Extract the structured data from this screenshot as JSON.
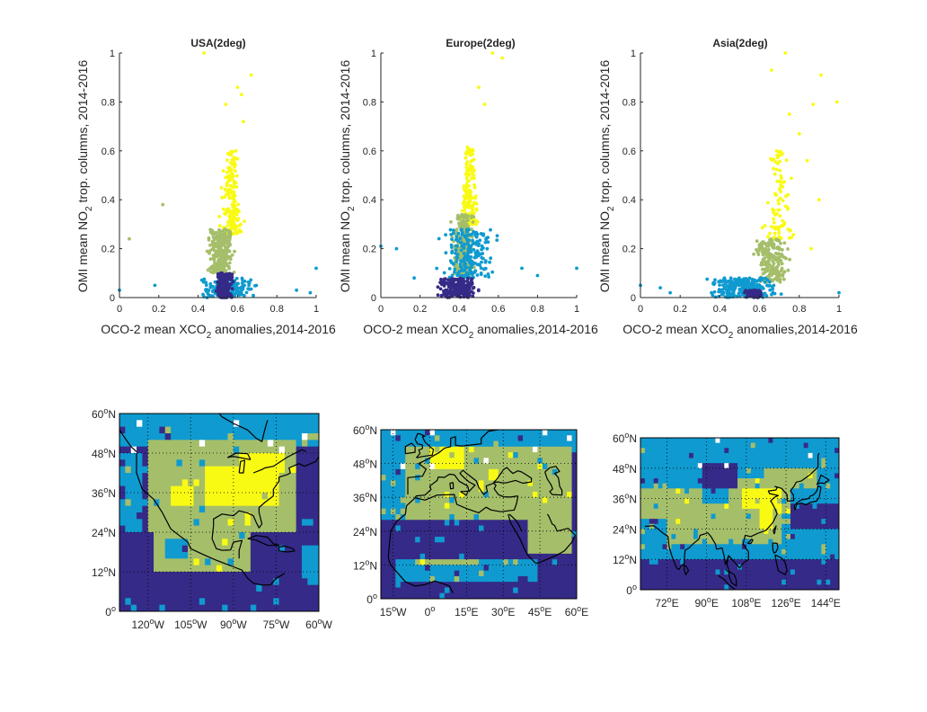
{
  "colors": {
    "class1": "#352a87",
    "class2": "#0f9ad0",
    "class3": "#a5be6a",
    "class4": "#f9fa14",
    "missing": "#ffffff",
    "coast": "#000000"
  },
  "scatter_common": {
    "xlabel_parts": [
      "OCO-2 mean XCO",
      "2",
      " anomalies,2014-2016"
    ],
    "ylabel_parts": [
      "OMI mean NO",
      "2",
      " trop. columns, 2014-2016"
    ],
    "ticks": [
      "0",
      "0.2",
      "0.4",
      "0.6",
      "0.8",
      "1"
    ]
  },
  "chart_data": [
    {
      "type": "scatter",
      "title": "USA(2deg)",
      "xlim": [
        0,
        1
      ],
      "ylim": [
        0,
        1
      ],
      "grid": false,
      "point_clusters": [
        {
          "class": 4,
          "n": 190,
          "x_center": 0.57,
          "x_spread": 0.07,
          "y_range": [
            0.26,
            0.6
          ]
        },
        {
          "class": 3,
          "n": 260,
          "x_center": 0.52,
          "x_spread": 0.08,
          "y_range": [
            0.1,
            0.28
          ]
        },
        {
          "class": 2,
          "n": 160,
          "x_center": 0.55,
          "x_spread": 0.17,
          "y_range": [
            0.0,
            0.08
          ]
        },
        {
          "class": 1,
          "n": 200,
          "x_center": 0.53,
          "x_spread": 0.05,
          "y_range": [
            0.0,
            0.1
          ]
        }
      ],
      "outliers": [
        {
          "class": 4,
          "x": 0.43,
          "y": 1.0
        },
        {
          "class": 4,
          "x": 0.67,
          "y": 0.91
        },
        {
          "class": 4,
          "x": 0.6,
          "y": 0.86
        },
        {
          "class": 4,
          "x": 0.62,
          "y": 0.83
        },
        {
          "class": 4,
          "x": 0.54,
          "y": 0.79
        },
        {
          "class": 4,
          "x": 0.63,
          "y": 0.72
        },
        {
          "class": 3,
          "x": 0.22,
          "y": 0.38
        },
        {
          "class": 3,
          "x": 0.05,
          "y": 0.24
        },
        {
          "class": 2,
          "x": 0.0,
          "y": 0.03
        },
        {
          "class": 2,
          "x": 0.18,
          "y": 0.05
        },
        {
          "class": 2,
          "x": 1.0,
          "y": 0.12
        },
        {
          "class": 2,
          "x": 0.97,
          "y": 0.02
        },
        {
          "class": 2,
          "x": 0.9,
          "y": 0.03
        }
      ]
    },
    {
      "type": "scatter",
      "title": "Europe(2deg)",
      "xlim": [
        0,
        1
      ],
      "ylim": [
        0,
        1
      ],
      "grid": false,
      "point_clusters": [
        {
          "class": 4,
          "n": 170,
          "x_center": 0.45,
          "x_spread": 0.06,
          "y_range": [
            0.3,
            0.62
          ]
        },
        {
          "class": 3,
          "n": 280,
          "x_center": 0.42,
          "x_spread": 0.06,
          "y_range": [
            0.09,
            0.34
          ]
        },
        {
          "class": 2,
          "n": 200,
          "x_center": 0.45,
          "x_spread": 0.16,
          "y_range": [
            0.08,
            0.28
          ]
        },
        {
          "class": 1,
          "n": 230,
          "x_center": 0.4,
          "x_spread": 0.12,
          "y_range": [
            0.0,
            0.08
          ]
        }
      ],
      "outliers": [
        {
          "class": 4,
          "x": 0.57,
          "y": 1.0
        },
        {
          "class": 4,
          "x": 0.62,
          "y": 0.98
        },
        {
          "class": 4,
          "x": 0.5,
          "y": 0.86
        },
        {
          "class": 4,
          "x": 0.53,
          "y": 0.79
        },
        {
          "class": 2,
          "x": 0.0,
          "y": 0.21
        },
        {
          "class": 2,
          "x": 0.08,
          "y": 0.2
        },
        {
          "class": 2,
          "x": 1.0,
          "y": 0.12
        },
        {
          "class": 2,
          "x": 0.72,
          "y": 0.12
        },
        {
          "class": 2,
          "x": 0.17,
          "y": 0.08
        },
        {
          "class": 2,
          "x": 0.8,
          "y": 0.09
        }
      ]
    },
    {
      "type": "scatter",
      "title": "Asia(2deg)",
      "xlim": [
        0,
        1
      ],
      "ylim": [
        0,
        1
      ],
      "grid": false,
      "point_clusters": [
        {
          "class": 4,
          "n": 90,
          "x_center": 0.7,
          "x_spread": 0.1,
          "y_range": [
            0.24,
            0.6
          ]
        },
        {
          "class": 3,
          "n": 200,
          "x_center": 0.66,
          "x_spread": 0.1,
          "y_range": [
            0.06,
            0.24
          ]
        },
        {
          "class": 2,
          "n": 260,
          "x_center": 0.52,
          "x_spread": 0.2,
          "y_range": [
            0.0,
            0.08
          ]
        },
        {
          "class": 1,
          "n": 70,
          "x_center": 0.57,
          "x_spread": 0.05,
          "y_range": [
            0.0,
            0.03
          ]
        }
      ],
      "outliers": [
        {
          "class": 4,
          "x": 0.73,
          "y": 1.0
        },
        {
          "class": 4,
          "x": 0.91,
          "y": 0.91
        },
        {
          "class": 4,
          "x": 0.66,
          "y": 0.93
        },
        {
          "class": 4,
          "x": 0.87,
          "y": 0.79
        },
        {
          "class": 4,
          "x": 0.99,
          "y": 0.8
        },
        {
          "class": 4,
          "x": 0.75,
          "y": 0.75
        },
        {
          "class": 4,
          "x": 0.8,
          "y": 0.67
        },
        {
          "class": 4,
          "x": 0.84,
          "y": 0.56
        },
        {
          "class": 4,
          "x": 0.9,
          "y": 0.4
        },
        {
          "class": 4,
          "x": 0.86,
          "y": 0.2
        },
        {
          "class": 2,
          "x": 0.0,
          "y": 0.05
        },
        {
          "class": 2,
          "x": 1.0,
          "y": 0.02
        },
        {
          "class": 2,
          "x": 0.1,
          "y": 0.04
        },
        {
          "class": 2,
          "x": 0.15,
          "y": 0.02
        }
      ]
    },
    {
      "type": "heatmap",
      "map": "USA",
      "lon_range": [
        -130,
        -60
      ],
      "lat_range": [
        0,
        60
      ],
      "x_ticks": [
        {
          "lon": -120,
          "text": "120",
          "hemi": "W"
        },
        {
          "lon": -105,
          "text": "105",
          "hemi": "W"
        },
        {
          "lon": -90,
          "text": "90",
          "hemi": "W"
        },
        {
          "lon": -75,
          "text": "75",
          "hemi": "W"
        },
        {
          "lon": -60,
          "text": "60",
          "hemi": "W"
        }
      ],
      "y_ticks": [
        {
          "lat": 0,
          "text": "0",
          "hemi": ""
        },
        {
          "lat": 12,
          "text": "12",
          "hemi": "N"
        },
        {
          "lat": 24,
          "text": "24",
          "hemi": "N"
        },
        {
          "lat": 36,
          "text": "36",
          "hemi": "N"
        },
        {
          "lat": 48,
          "text": "48",
          "hemi": "N"
        },
        {
          "lat": 60,
          "text": "60",
          "hemi": "N"
        }
      ],
      "grid_cells": {
        "cols": 35,
        "rows": 30,
        "default_class": 1,
        "regions": [
          {
            "class": 2,
            "lon": [
              -130,
              -60
            ],
            "lat": [
              50,
              60
            ]
          },
          {
            "class": 3,
            "lon": [
              -120,
              -68
            ],
            "lat": [
              24,
              52
            ]
          },
          {
            "class": 3,
            "lon": [
              -118,
              -84
            ],
            "lat": [
              12,
              26
            ]
          },
          {
            "class": 4,
            "lon": [
              -100,
              -74
            ],
            "lat": [
              32,
              44
            ]
          },
          {
            "class": 4,
            "lon": [
              -88,
              -72
            ],
            "lat": [
              42,
              48
            ]
          },
          {
            "class": 4,
            "lon": [
              -112,
              -104
            ],
            "lat": [
              32,
              38
            ]
          },
          {
            "class": 2,
            "lon": [
              -130,
              -122
            ],
            "lat": [
              24,
              48
            ]
          },
          {
            "class": 2,
            "lon": [
              -114,
              -106
            ],
            "lat": [
              16,
              22
            ]
          },
          {
            "class": 2,
            "lon": [
              -66,
              -60
            ],
            "lat": [
              8,
              20
            ]
          }
        ]
      }
    },
    {
      "type": "heatmap",
      "map": "Europe",
      "lon_range": [
        -20,
        60
      ],
      "lat_range": [
        0,
        60
      ],
      "x_ticks": [
        {
          "lon": -15,
          "text": "15",
          "hemi": "W"
        },
        {
          "lon": 0,
          "text": "0",
          "hemi": ""
        },
        {
          "lon": 15,
          "text": "15",
          "hemi": "E"
        },
        {
          "lon": 30,
          "text": "30",
          "hemi": "E"
        },
        {
          "lon": 45,
          "text": "45",
          "hemi": "E"
        },
        {
          "lon": 60,
          "text": "60",
          "hemi": "E"
        }
      ],
      "y_ticks": [
        {
          "lat": 0,
          "text": "0",
          "hemi": ""
        },
        {
          "lat": 12,
          "text": "12",
          "hemi": "N"
        },
        {
          "lat": 24,
          "text": "24",
          "hemi": "N"
        },
        {
          "lat": 36,
          "text": "36",
          "hemi": "N"
        },
        {
          "lat": 48,
          "text": "48",
          "hemi": "N"
        },
        {
          "lat": 60,
          "text": "60",
          "hemi": "N"
        }
      ],
      "grid_cells": {
        "cols": 40,
        "rows": 30,
        "default_class": 1,
        "regions": [
          {
            "class": 2,
            "lon": [
              -20,
              60
            ],
            "lat": [
              52,
              60
            ]
          },
          {
            "class": 3,
            "lon": [
              -10,
              58
            ],
            "lat": [
              28,
              54
            ]
          },
          {
            "class": 4,
            "lon": [
              0,
              14
            ],
            "lat": [
              46,
              54
            ]
          },
          {
            "class": 4,
            "lon": [
              24,
              28
            ],
            "lat": [
              42,
              46
            ]
          },
          {
            "class": 2,
            "lon": [
              -20,
              -10
            ],
            "lat": [
              28,
              52
            ]
          },
          {
            "class": 2,
            "lon": [
              -14,
              44
            ],
            "lat": [
              6,
              14
            ]
          },
          {
            "class": 3,
            "lon": [
              40,
              58
            ],
            "lat": [
              16,
              30
            ]
          },
          {
            "class": 3,
            "lon": [
              -6,
              20
            ],
            "lat": [
              12,
              14
            ]
          }
        ]
      }
    },
    {
      "type": "heatmap",
      "map": "Asia",
      "lon_range": [
        60,
        150
      ],
      "lat_range": [
        0,
        60
      ],
      "x_ticks": [
        {
          "lon": 72,
          "text": "72",
          "hemi": "E"
        },
        {
          "lon": 90,
          "text": "90",
          "hemi": "E"
        },
        {
          "lon": 108,
          "text": "108",
          "hemi": "E"
        },
        {
          "lon": 126,
          "text": "126",
          "hemi": "E"
        },
        {
          "lon": 144,
          "text": "144",
          "hemi": "E"
        }
      ],
      "y_ticks": [
        {
          "lat": 0,
          "text": "0",
          "hemi": ""
        },
        {
          "lat": 12,
          "text": "12",
          "hemi": "N"
        },
        {
          "lat": 24,
          "text": "24",
          "hemi": "N"
        },
        {
          "lat": 36,
          "text": "36",
          "hemi": "N"
        },
        {
          "lat": 48,
          "text": "48",
          "hemi": "N"
        },
        {
          "lat": 60,
          "text": "60",
          "hemi": "N"
        }
      ],
      "grid_cells": {
        "cols": 45,
        "rows": 30,
        "default_class": 2,
        "regions": [
          {
            "class": 3,
            "lon": [
              60,
              88
            ],
            "lat": [
              28,
              40
            ]
          },
          {
            "class": 3,
            "lon": [
              72,
              124
            ],
            "lat": [
              18,
              34
            ]
          },
          {
            "class": 3,
            "lon": [
              100,
              128
            ],
            "lat": [
              30,
              44
            ]
          },
          {
            "class": 3,
            "lon": [
              116,
              140
            ],
            "lat": [
              40,
              48
            ]
          },
          {
            "class": 4,
            "lon": [
              106,
              124
            ],
            "lat": [
              32,
              40
            ]
          },
          {
            "class": 4,
            "lon": [
              114,
              120
            ],
            "lat": [
              24,
              32
            ]
          },
          {
            "class": 1,
            "lon": [
              60,
              150
            ],
            "lat": [
              0,
              12
            ]
          },
          {
            "class": 1,
            "lon": [
              88,
              104
            ],
            "lat": [
              40,
              50
            ]
          },
          {
            "class": 1,
            "lon": [
              128,
              150
            ],
            "lat": [
              24,
              34
            ]
          }
        ]
      }
    }
  ]
}
